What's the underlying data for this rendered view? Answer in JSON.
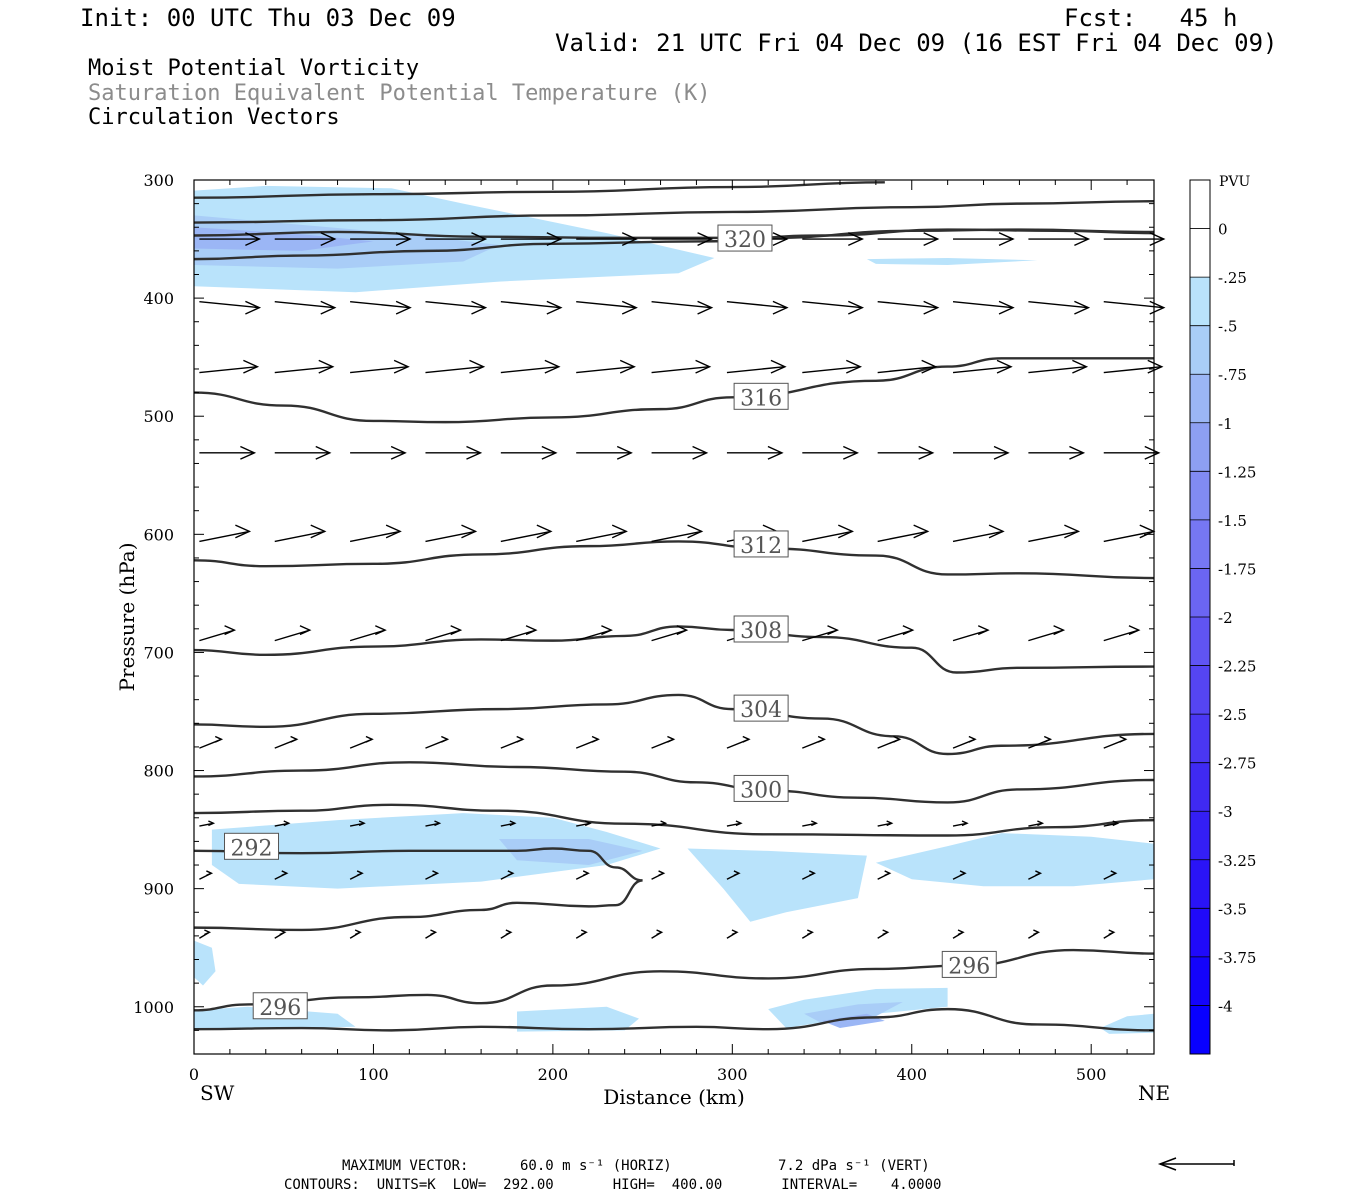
{
  "header": {
    "init": "Init: 00 UTC Thu 03 Dec 09",
    "fcst": "Fcst:   45 h",
    "valid": "Valid: 21 UTC Fri 04 Dec 09 (16 EST Fri 04 Dec 09)"
  },
  "fields": {
    "line1": "Moist Potential Vorticity",
    "line2": "Saturation Equivalent Potential Temperature (K)",
    "line3": "Circulation Vectors"
  },
  "footer": {
    "max_vector_label": "MAXIMUM VECTOR:",
    "max_horiz": "60.0 m s⁻¹ (HORIZ)",
    "max_vert": "7.2 dPa s⁻¹ (VERT)",
    "contours": "CONTOURS:  UNITS=K  LOW=  292.00       HIGH=  400.00       INTERVAL=    4.0000"
  },
  "colors": {
    "shade_025": "#b9e3fb",
    "shade_050": "#a9cdf7",
    "shade_075": "#9bb6f5",
    "shade_100": "#8d9ff3",
    "contour": "#303030",
    "vector": "#000000"
  },
  "chart_data": {
    "type": "contour",
    "xlabel": "Distance (km)",
    "ylabel": "Pressure (hPa)",
    "x_left_label": "SW",
    "x_right_label": "NE",
    "xlim": [
      0,
      535
    ],
    "ylim": [
      1040,
      300
    ],
    "x_ticks": [
      0,
      100,
      200,
      300,
      400,
      500
    ],
    "y_ticks": [
      300,
      400,
      500,
      600,
      700,
      800,
      900,
      1000
    ],
    "contour_lines": [
      {
        "label": "320",
        "label_pos": [
          292,
          350
        ],
        "points": [
          [
            0,
            367
          ],
          [
            60,
            364
          ],
          [
            130,
            360
          ],
          [
            200,
            354
          ],
          [
            280,
            352
          ],
          [
            350,
            347
          ],
          [
            420,
            342
          ],
          [
            480,
            343
          ],
          [
            535,
            345
          ]
        ]
      },
      {
        "label": "",
        "points": [
          [
            0,
            347
          ],
          [
            80,
            344
          ],
          [
            160,
            348
          ],
          [
            240,
            349
          ],
          [
            320,
            349
          ],
          [
            400,
            343
          ],
          [
            460,
            342
          ],
          [
            535,
            344
          ]
        ]
      },
      {
        "label": "",
        "points": [
          [
            0,
            336
          ],
          [
            100,
            334
          ],
          [
            200,
            330
          ],
          [
            300,
            327
          ],
          [
            400,
            323
          ],
          [
            460,
            320
          ],
          [
            535,
            318
          ]
        ]
      },
      {
        "label": "",
        "points": [
          [
            0,
            315
          ],
          [
            100,
            312
          ],
          [
            200,
            310
          ],
          [
            300,
            306
          ],
          [
            385,
            302
          ]
        ]
      },
      {
        "label": "316",
        "label_pos": [
          301,
          484
        ],
        "points": [
          [
            0,
            480
          ],
          [
            50,
            491
          ],
          [
            100,
            504
          ],
          [
            140,
            505
          ],
          [
            200,
            501
          ],
          [
            260,
            494
          ],
          [
            300,
            484
          ],
          [
            380,
            470
          ],
          [
            420,
            458
          ],
          [
            450,
            451
          ],
          [
            535,
            451
          ]
        ]
      },
      {
        "label": "312",
        "label_pos": [
          301,
          609
        ],
        "points": [
          [
            0,
            622
          ],
          [
            40,
            627
          ],
          [
            100,
            625
          ],
          [
            160,
            617
          ],
          [
            220,
            610
          ],
          [
            270,
            606
          ],
          [
            320,
            612
          ],
          [
            380,
            618
          ],
          [
            420,
            634
          ],
          [
            460,
            633
          ],
          [
            535,
            637
          ]
        ]
      },
      {
        "label": "308",
        "label_pos": [
          301,
          681
        ],
        "points": [
          [
            0,
            698
          ],
          [
            40,
            702
          ],
          [
            100,
            695
          ],
          [
            160,
            689
          ],
          [
            200,
            690
          ],
          [
            240,
            686
          ],
          [
            270,
            678
          ],
          [
            300,
            681
          ],
          [
            350,
            687
          ],
          [
            400,
            696
          ],
          [
            425,
            717
          ],
          [
            460,
            713
          ],
          [
            535,
            712
          ]
        ]
      },
      {
        "label": "304",
        "label_pos": [
          301,
          748
        ],
        "points": [
          [
            0,
            761
          ],
          [
            40,
            763
          ],
          [
            100,
            752
          ],
          [
            170,
            748
          ],
          [
            230,
            744
          ],
          [
            270,
            736
          ],
          [
            300,
            748
          ],
          [
            350,
            756
          ],
          [
            390,
            771
          ],
          [
            420,
            786
          ],
          [
            450,
            779
          ],
          [
            535,
            769
          ]
        ]
      },
      {
        "label": "300",
        "label_pos": [
          301,
          816
        ],
        "points": [
          [
            0,
            805
          ],
          [
            60,
            800
          ],
          [
            120,
            793
          ],
          [
            180,
            797
          ],
          [
            240,
            801
          ],
          [
            280,
            810
          ],
          [
            320,
            817
          ],
          [
            370,
            823
          ],
          [
            420,
            827
          ],
          [
            460,
            816
          ],
          [
            535,
            808
          ]
        ]
      },
      {
        "label": "",
        "points": [
          [
            0,
            836
          ],
          [
            60,
            834
          ],
          [
            110,
            829
          ],
          [
            170,
            834
          ],
          [
            240,
            845
          ],
          [
            320,
            854
          ],
          [
            420,
            855
          ],
          [
            480,
            848
          ],
          [
            535,
            842
          ]
        ]
      },
      {
        "label": "292",
        "label_pos": [
          17,
          865
        ],
        "points": [
          [
            0,
            868
          ],
          [
            60,
            870
          ],
          [
            120,
            868
          ],
          [
            180,
            868
          ],
          [
            200,
            866
          ],
          [
            220,
            868
          ],
          [
            235,
            882
          ],
          [
            250,
            893
          ],
          [
            235,
            914
          ],
          [
            220,
            915
          ],
          [
            180,
            912
          ],
          [
            160,
            918
          ],
          [
            120,
            924
          ],
          [
            60,
            935
          ],
          [
            0,
            933
          ]
        ]
      },
      {
        "label": "296",
        "label_pos": [
          417,
          965
        ],
        "points": [
          [
            0,
            1003
          ],
          [
            30,
            998
          ],
          [
            90,
            992
          ],
          [
            130,
            990
          ],
          [
            160,
            997
          ],
          [
            200,
            982
          ],
          [
            260,
            970
          ],
          [
            320,
            976
          ],
          [
            380,
            968
          ],
          [
            430,
            965
          ],
          [
            490,
            952
          ],
          [
            535,
            955
          ]
        ]
      },
      {
        "label": "296",
        "label_pos": [
          33,
          1000
        ],
        "points": [
          [
            0,
            1019
          ],
          [
            60,
            1018
          ],
          [
            110,
            1020
          ],
          [
            160,
            1017
          ],
          [
            220,
            1019
          ],
          [
            280,
            1017
          ],
          [
            320,
            1019
          ],
          [
            380,
            1009
          ],
          [
            420,
            1002
          ],
          [
            470,
            1015
          ],
          [
            535,
            1020
          ]
        ]
      }
    ],
    "shaded_regions": [
      {
        "level": -0.25,
        "points": [
          [
            0,
            309
          ],
          [
            40,
            305
          ],
          [
            110,
            307
          ],
          [
            150,
            320
          ],
          [
            230,
            345
          ],
          [
            290,
            366
          ],
          [
            270,
            379
          ],
          [
            170,
            386
          ],
          [
            90,
            395
          ],
          [
            0,
            390
          ]
        ]
      },
      {
        "level": -0.5,
        "points": [
          [
            0,
            330
          ],
          [
            60,
            338
          ],
          [
            120,
            346
          ],
          [
            170,
            355
          ],
          [
            150,
            369
          ],
          [
            80,
            375
          ],
          [
            0,
            372
          ]
        ]
      },
      {
        "level": -0.75,
        "points": [
          [
            0,
            340
          ],
          [
            60,
            346
          ],
          [
            100,
            352
          ],
          [
            60,
            360
          ],
          [
            0,
            358
          ]
        ]
      },
      {
        "level": -0.25,
        "points": [
          [
            375,
            367
          ],
          [
            420,
            366
          ],
          [
            470,
            368
          ],
          [
            420,
            372
          ],
          [
            380,
            371
          ]
        ]
      },
      {
        "level": -0.25,
        "points": [
          [
            10,
            850
          ],
          [
            80,
            842
          ],
          [
            150,
            836
          ],
          [
            200,
            840
          ],
          [
            230,
            852
          ],
          [
            260,
            866
          ],
          [
            230,
            880
          ],
          [
            160,
            894
          ],
          [
            80,
            900
          ],
          [
            25,
            896
          ],
          [
            10,
            880
          ]
        ]
      },
      {
        "level": -0.25,
        "points": [
          [
            275,
            866
          ],
          [
            320,
            868
          ],
          [
            375,
            872
          ],
          [
            370,
            908
          ],
          [
            330,
            920
          ],
          [
            310,
            928
          ],
          [
            295,
            900
          ]
        ]
      },
      {
        "level": -0.25,
        "points": [
          [
            380,
            878
          ],
          [
            420,
            864
          ],
          [
            450,
            853
          ],
          [
            500,
            856
          ],
          [
            535,
            862
          ],
          [
            535,
            892
          ],
          [
            490,
            898
          ],
          [
            440,
            898
          ],
          [
            400,
            892
          ]
        ]
      },
      {
        "level": -0.5,
        "points": [
          [
            170,
            858
          ],
          [
            220,
            858
          ],
          [
            250,
            868
          ],
          [
            220,
            880
          ],
          [
            180,
            876
          ]
        ]
      },
      {
        "level": -0.25,
        "points": [
          [
            0,
            944
          ],
          [
            10,
            950
          ],
          [
            12,
            970
          ],
          [
            5,
            982
          ],
          [
            0,
            975
          ]
        ]
      },
      {
        "level": -0.25,
        "points": [
          [
            0,
            1003
          ],
          [
            30,
            1000
          ],
          [
            80,
            1006
          ],
          [
            90,
            1017
          ],
          [
            30,
            1019
          ],
          [
            0,
            1018
          ]
        ]
      },
      {
        "level": -0.25,
        "points": [
          [
            180,
            1004
          ],
          [
            230,
            1000
          ],
          [
            248,
            1010
          ],
          [
            240,
            1020
          ],
          [
            180,
            1021
          ]
        ]
      },
      {
        "level": -0.25,
        "points": [
          [
            320,
            1002
          ],
          [
            340,
            994
          ],
          [
            380,
            985
          ],
          [
            420,
            984
          ],
          [
            420,
            1000
          ],
          [
            380,
            1006
          ],
          [
            330,
            1018
          ]
        ]
      },
      {
        "level": -0.5,
        "points": [
          [
            340,
            1006
          ],
          [
            370,
            998
          ],
          [
            395,
            996
          ],
          [
            380,
            1008
          ],
          [
            350,
            1014
          ]
        ]
      },
      {
        "level": -0.75,
        "points": [
          [
            350,
            1012
          ],
          [
            375,
            1006
          ],
          [
            385,
            1012
          ],
          [
            360,
            1018
          ]
        ]
      },
      {
        "level": -0.25,
        "points": [
          [
            505,
            1018
          ],
          [
            520,
            1008
          ],
          [
            535,
            1006
          ],
          [
            535,
            1022
          ],
          [
            510,
            1023
          ]
        ]
      }
    ],
    "vectors": [
      {
        "p": 350,
        "count": 13,
        "length": 60,
        "dir": 0
      },
      {
        "p": 403,
        "count": 13,
        "length": 60,
        "dir": -0.01
      },
      {
        "p": 463,
        "count": 13,
        "length": 58,
        "dir": 0.01
      },
      {
        "p": 531,
        "count": 13,
        "length": 55,
        "dir": 0
      },
      {
        "p": 606,
        "count": 13,
        "length": 50,
        "dir": 0.02
      },
      {
        "p": 690,
        "count": 13,
        "length": 35,
        "dir": 0.03
      },
      {
        "p": 781,
        "count": 13,
        "length": 22,
        "dir": 0.04
      },
      {
        "p": 847,
        "count": 13,
        "length": 14,
        "dir": 0.02
      },
      {
        "p": 892,
        "count": 13,
        "length": 12,
        "dir": 0.05
      },
      {
        "p": 942,
        "count": 13,
        "length": 10,
        "dir": 0.06
      }
    ],
    "colorbar": {
      "unit": "PVU",
      "levels": [
        "0",
        "-.25",
        "-.5",
        "-.75",
        "-1",
        "-1.25",
        "-1.5",
        "-1.75",
        "-2",
        "-2.25",
        "-2.5",
        "-2.75",
        "-3",
        "-3.25",
        "-3.5",
        "-3.75",
        "-4"
      ],
      "colors": [
        "#ffffff",
        "#b9e3fb",
        "#a9cdf7",
        "#9bb6f5",
        "#8d9ff3",
        "#818bf3",
        "#7677f3",
        "#6b65f3",
        "#6054f3",
        "#5545f3",
        "#4a37f3",
        "#3f2af3",
        "#341ff5",
        "#2a14f7",
        "#200af9",
        "#1404fb",
        "#0800ff"
      ]
    }
  }
}
